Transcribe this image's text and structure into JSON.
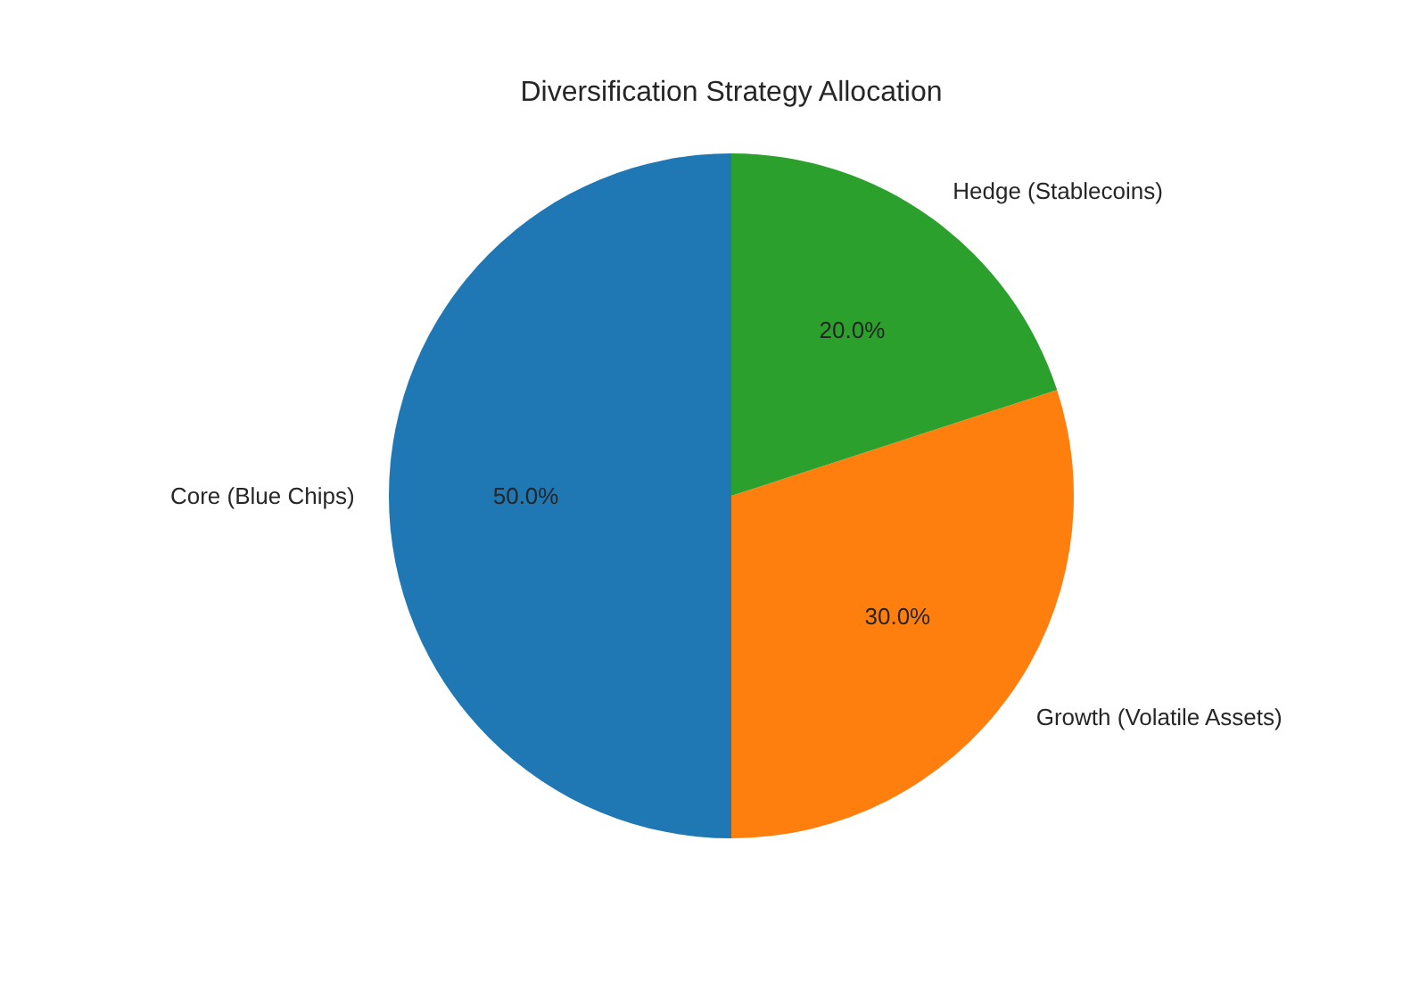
{
  "chart_data": {
    "type": "pie",
    "title": "Diversification Strategy Allocation",
    "categories": [
      "Core (Blue Chips)",
      "Growth (Volatile Assets)",
      "Hedge (Stablecoins)"
    ],
    "values": [
      50,
      30,
      20
    ],
    "colors": [
      "#1f77b4",
      "#ff7f0e",
      "#2ca02c"
    ],
    "value_labels": [
      "50.0%",
      "30.0%",
      "20.0%"
    ],
    "legend": false
  }
}
